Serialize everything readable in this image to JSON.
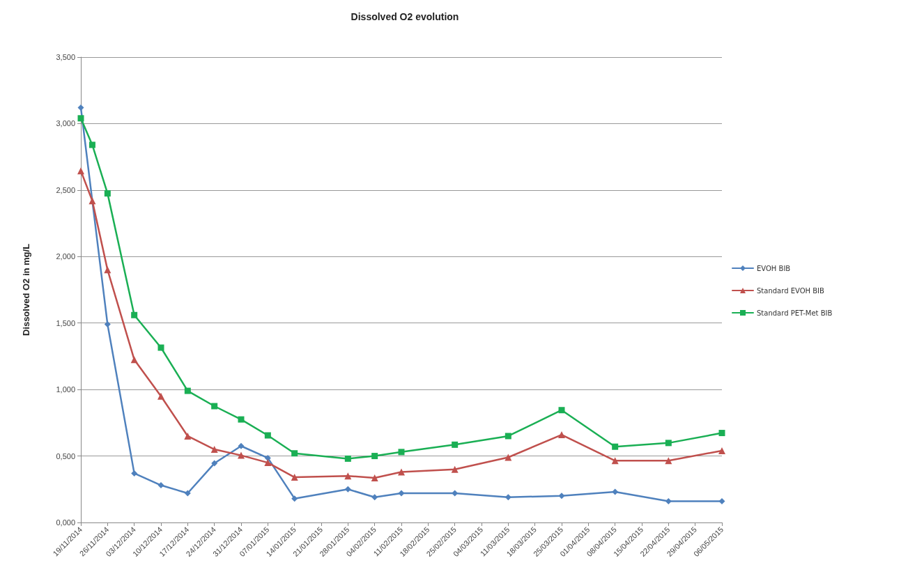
{
  "chart_data": {
    "type": "line",
    "title": "Dissolved O2 evolution",
    "ylabel": "Dissolved O2 in mg/L",
    "ylim": [
      0,
      3.5
    ],
    "yticks": [
      {
        "value": 0,
        "label": "0,000"
      },
      {
        "value": 0.5,
        "label": "0,500"
      },
      {
        "value": 1,
        "label": "1,000"
      },
      {
        "value": 1.5,
        "label": "1,500"
      },
      {
        "value": 2,
        "label": "2,000"
      },
      {
        "value": 2.5,
        "label": "2,500"
      },
      {
        "value": 3,
        "label": "3,000"
      },
      {
        "value": 3.5,
        "label": "3,500"
      }
    ],
    "xlim": [
      "2014-11-19",
      "2015-05-06"
    ],
    "xticks": [
      {
        "value": "2014-11-19",
        "label": "19/11/2014"
      },
      {
        "value": "2014-11-26",
        "label": "26/11/2014"
      },
      {
        "value": "2014-12-03",
        "label": "03/12/2014"
      },
      {
        "value": "2014-12-10",
        "label": "10/12/2014"
      },
      {
        "value": "2014-12-17",
        "label": "17/12/2014"
      },
      {
        "value": "2014-12-24",
        "label": "24/12/2014"
      },
      {
        "value": "2014-12-31",
        "label": "31/12/2014"
      },
      {
        "value": "2015-01-07",
        "label": "07/01/2015"
      },
      {
        "value": "2015-01-14",
        "label": "14/01/2015"
      },
      {
        "value": "2015-01-21",
        "label": "21/01/2015"
      },
      {
        "value": "2015-01-28",
        "label": "28/01/2015"
      },
      {
        "value": "2015-02-04",
        "label": "04/02/2015"
      },
      {
        "value": "2015-02-11",
        "label": "11/02/2015"
      },
      {
        "value": "2015-02-18",
        "label": "18/02/2015"
      },
      {
        "value": "2015-02-25",
        "label": "25/02/2015"
      },
      {
        "value": "2015-03-04",
        "label": "04/03/2015"
      },
      {
        "value": "2015-03-11",
        "label": "11/03/2015"
      },
      {
        "value": "2015-03-18",
        "label": "18/03/2015"
      },
      {
        "value": "2015-03-25",
        "label": "25/03/2015"
      },
      {
        "value": "2015-04-01",
        "label": "01/04/2015"
      },
      {
        "value": "2015-04-08",
        "label": "08/04/2015"
      },
      {
        "value": "2015-04-15",
        "label": "15/04/2015"
      },
      {
        "value": "2015-04-22",
        "label": "22/04/2015"
      },
      {
        "value": "2015-04-29",
        "label": "29/04/2015"
      },
      {
        "value": "2015-05-06",
        "label": "06/05/2015"
      }
    ],
    "grid": "y",
    "legend": "right",
    "line_style": "solid",
    "series": [
      {
        "name": "EVOH BIB",
        "color": "#4f81bd",
        "marker": "diamond",
        "x": [
          "2014-11-19",
          "2014-11-26",
          "2014-12-03",
          "2014-12-10",
          "2014-12-17",
          "2014-12-24",
          "2014-12-31",
          "2015-01-07",
          "2015-01-14",
          "2015-01-28",
          "2015-02-04",
          "2015-02-11",
          "2015-02-25",
          "2015-03-11",
          "2015-03-25",
          "2015-04-08",
          "2015-04-22",
          "2015-05-06"
        ],
        "values": [
          3.12,
          1.49,
          0.37,
          0.28,
          0.22,
          0.445,
          0.575,
          0.485,
          0.18,
          0.25,
          0.19,
          0.22,
          0.22,
          0.19,
          0.2,
          0.23,
          0.16,
          0.16
        ]
      },
      {
        "name": "Standard EVOH BIB",
        "color": "#c0504d",
        "marker": "triangle",
        "x": [
          "2014-11-19",
          "2014-11-22",
          "2014-11-26",
          "2014-12-03",
          "2014-12-10",
          "2014-12-17",
          "2014-12-24",
          "2014-12-31",
          "2015-01-07",
          "2015-01-14",
          "2015-01-28",
          "2015-02-04",
          "2015-02-11",
          "2015-02-25",
          "2015-03-11",
          "2015-03-25",
          "2015-04-08",
          "2015-04-22",
          "2015-05-06"
        ],
        "values": [
          2.645,
          2.42,
          1.9,
          1.225,
          0.95,
          0.65,
          0.55,
          0.505,
          0.45,
          0.34,
          0.35,
          0.335,
          0.38,
          0.4,
          0.49,
          0.66,
          0.465,
          0.465,
          0.54
        ]
      },
      {
        "name": "Standard PET-Met BIB",
        "color": "#1aaf54",
        "marker": "square",
        "x": [
          "2014-11-19",
          "2014-11-22",
          "2014-11-26",
          "2014-12-03",
          "2014-12-10",
          "2014-12-17",
          "2014-12-24",
          "2014-12-31",
          "2015-01-07",
          "2015-01-14",
          "2015-01-28",
          "2015-02-04",
          "2015-02-11",
          "2015-02-25",
          "2015-03-11",
          "2015-03-25",
          "2015-04-08",
          "2015-04-22",
          "2015-05-06"
        ],
        "values": [
          3.04,
          2.84,
          2.475,
          1.56,
          1.315,
          0.99,
          0.875,
          0.775,
          0.655,
          0.52,
          0.48,
          0.5,
          0.53,
          0.585,
          0.65,
          0.845,
          0.57,
          0.598,
          0.673
        ]
      }
    ]
  }
}
